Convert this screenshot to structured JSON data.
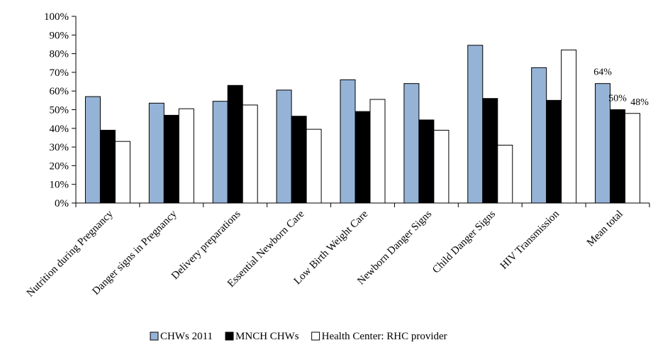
{
  "chart_data": {
    "type": "bar",
    "categories": [
      "Nutrition during Pregnancy",
      "Danger signs in Pregnancy",
      "Delivery preparations",
      "Essential Newborn Care",
      "Low Birth Weight Care",
      "Newborn Danger Signs",
      "Child Danger Signs",
      "HIV Transmission",
      "Mean total"
    ],
    "series": [
      {
        "name": "CHWs 2011",
        "color": "#95b3d7",
        "values": [
          57,
          53.5,
          54.5,
          60.5,
          66,
          64,
          84.5,
          72.5,
          64
        ]
      },
      {
        "name": "MNCH CHWs",
        "color": "#000000",
        "values": [
          39,
          47,
          63,
          46.5,
          49,
          44.5,
          56,
          55,
          50
        ]
      },
      {
        "name": "Health Center: RHC provider",
        "color": "#ffffff",
        "values": [
          33,
          50.5,
          52.5,
          39.5,
          55.5,
          39,
          31,
          82,
          48
        ]
      }
    ],
    "yticks": [
      "0%",
      "10%",
      "20%",
      "30%",
      "40%",
      "50%",
      "60%",
      "70%",
      "80%",
      "90%",
      "100%"
    ],
    "ylim": [
      0,
      100
    ],
    "annotations": [
      {
        "category": "Mean total",
        "series": "CHWs 2011",
        "text": "64%"
      },
      {
        "category": "Mean total",
        "series": "MNCH CHWs",
        "text": "50%"
      },
      {
        "category": "Mean total",
        "series": "Health Center: RHC provider",
        "text": "48%"
      }
    ],
    "grid": false,
    "legend_position": "bottom"
  }
}
